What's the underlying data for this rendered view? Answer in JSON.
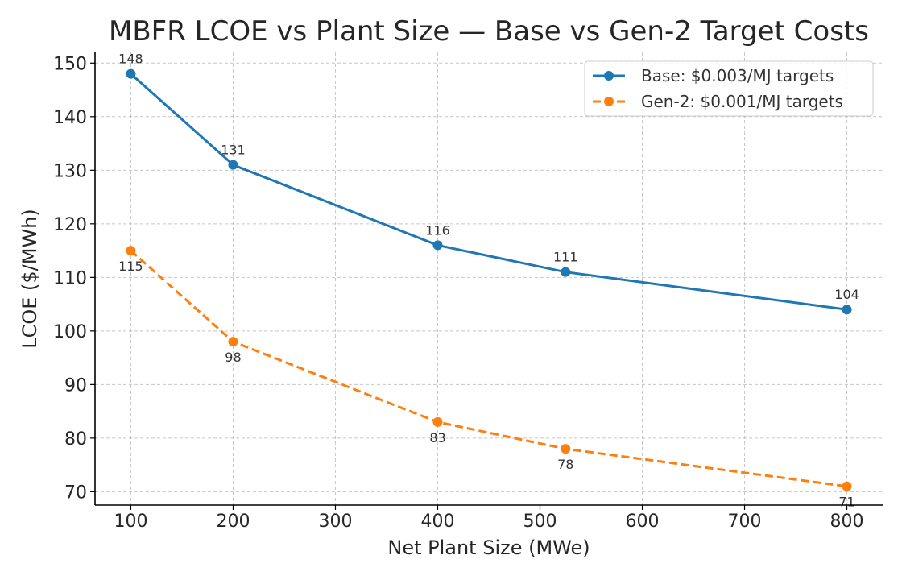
{
  "chart_data": {
    "type": "line",
    "title": "MBFR LCOE vs Plant Size — Base vs Gen-2 Target Costs",
    "xlabel": "Net Plant Size (MWe)",
    "ylabel": "LCOE ($/MWh)",
    "xlim": [
      65,
      835
    ],
    "ylim": [
      67.5,
      152
    ],
    "x_ticks": [
      100,
      200,
      300,
      400,
      500,
      600,
      700,
      800
    ],
    "y_ticks": [
      70,
      80,
      90,
      100,
      110,
      120,
      130,
      140,
      150
    ],
    "grid": true,
    "legend_position": "top-right",
    "x": [
      100,
      200,
      400,
      525,
      800
    ],
    "series": [
      {
        "name": "Base: $0.003/MJ targets",
        "values": [
          148,
          131,
          116,
          111,
          104
        ],
        "color": "#1f77b4",
        "line_style": "solid",
        "marker": "circle"
      },
      {
        "name": "Gen-2: $0.001/MJ targets",
        "values": [
          115,
          98,
          83,
          78,
          71
        ],
        "color": "#ff7f0e",
        "line_style": "dashed",
        "marker": "circle"
      }
    ]
  }
}
